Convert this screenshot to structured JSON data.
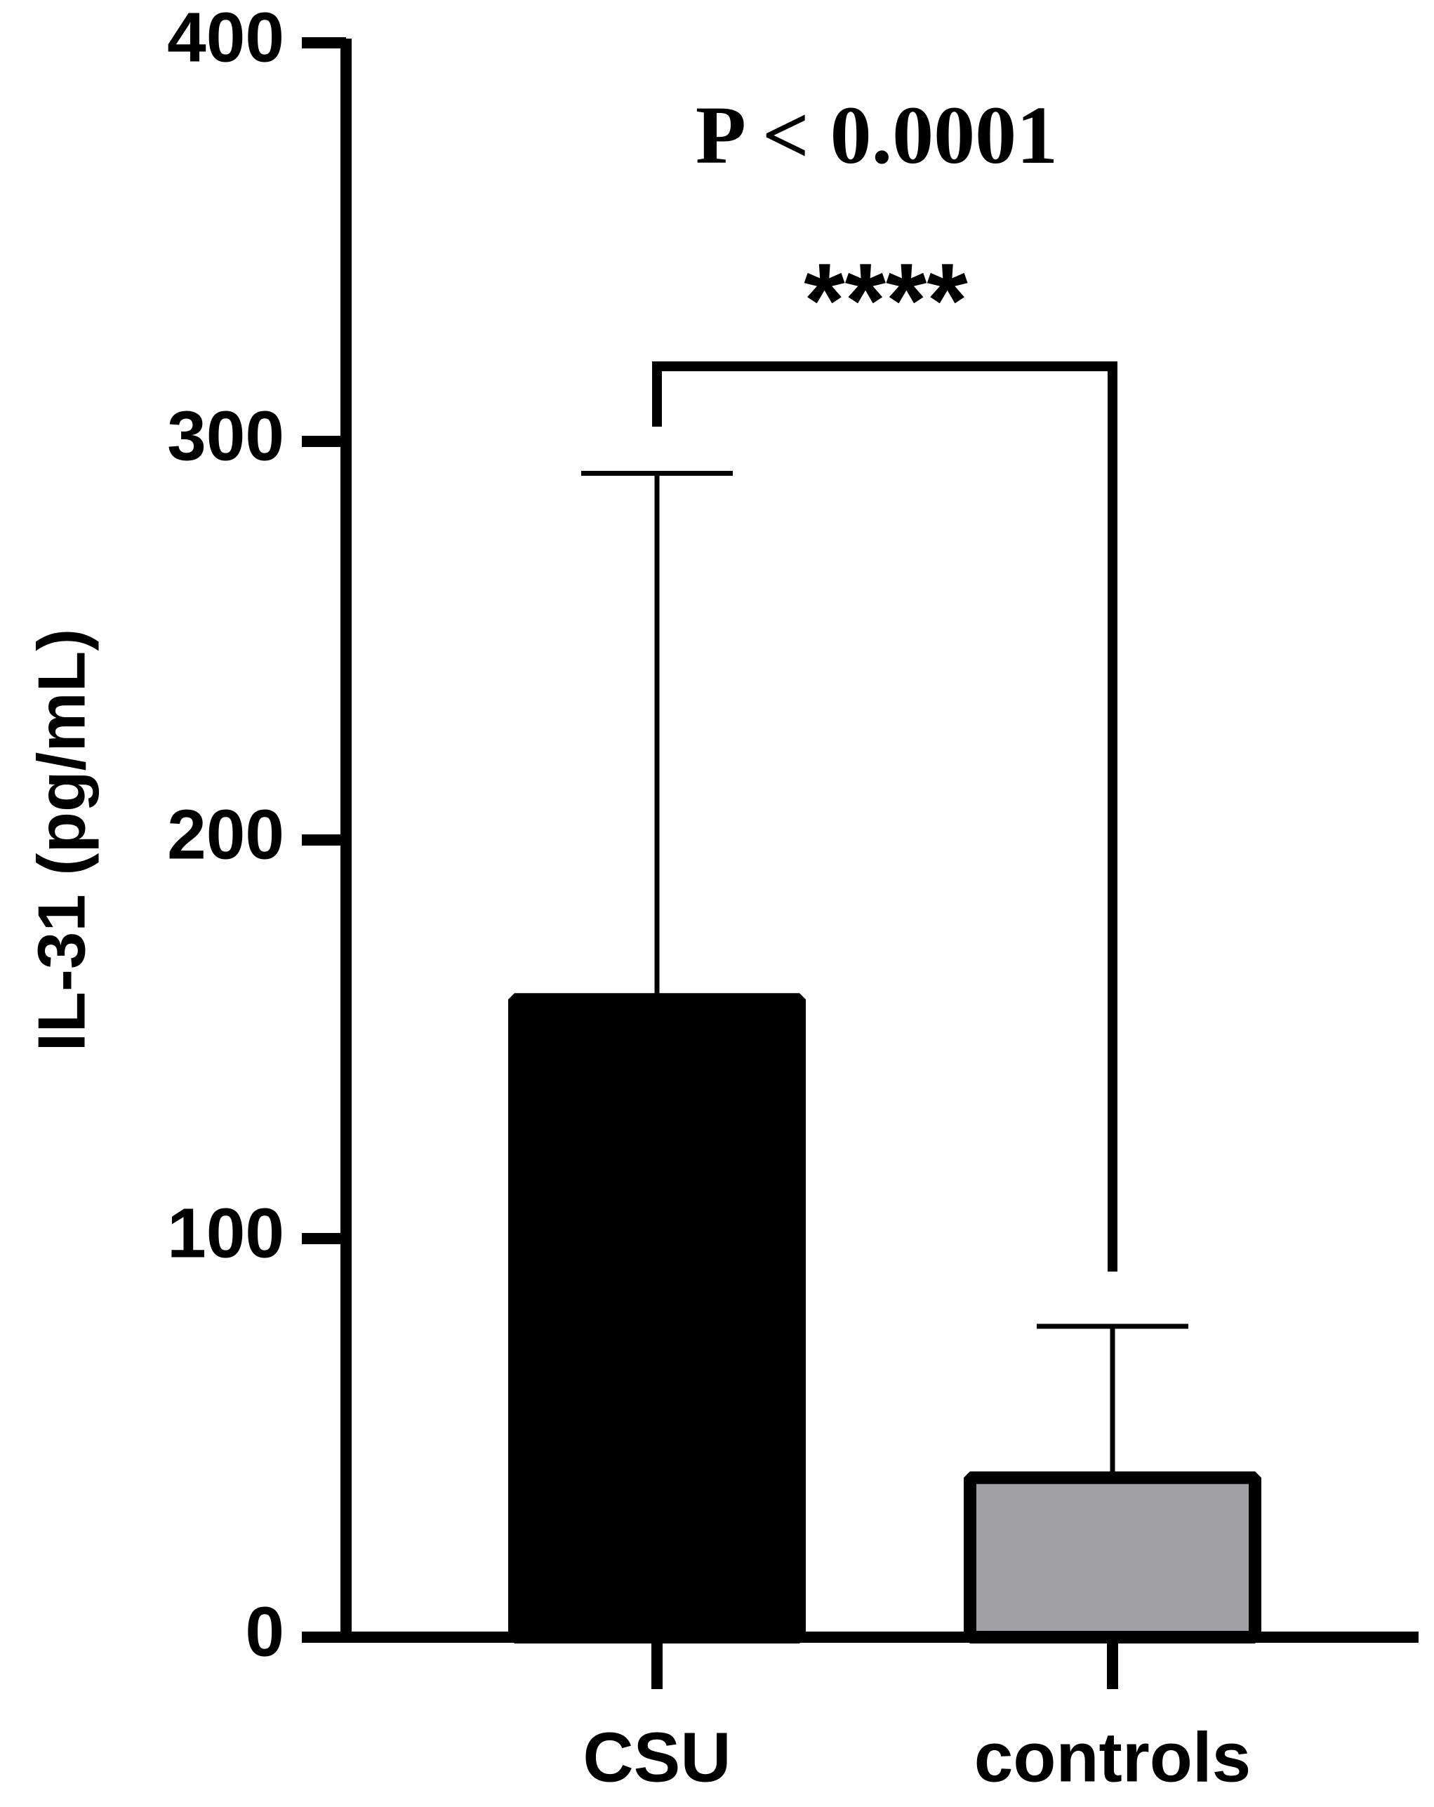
{
  "chart_data": {
    "type": "bar",
    "y_label": "IL-31 (pg/mL)",
    "categories": [
      "CSU",
      "controls"
    ],
    "values": [
      160,
      40
    ],
    "errors": [
      132,
      38
    ],
    "colors": [
      "#000000",
      "#a0a0a4"
    ],
    "ylim": [
      0,
      400
    ],
    "yticks": [
      0,
      100,
      200,
      300,
      400
    ],
    "annotation": "P < 0.0001",
    "significance": "****"
  }
}
